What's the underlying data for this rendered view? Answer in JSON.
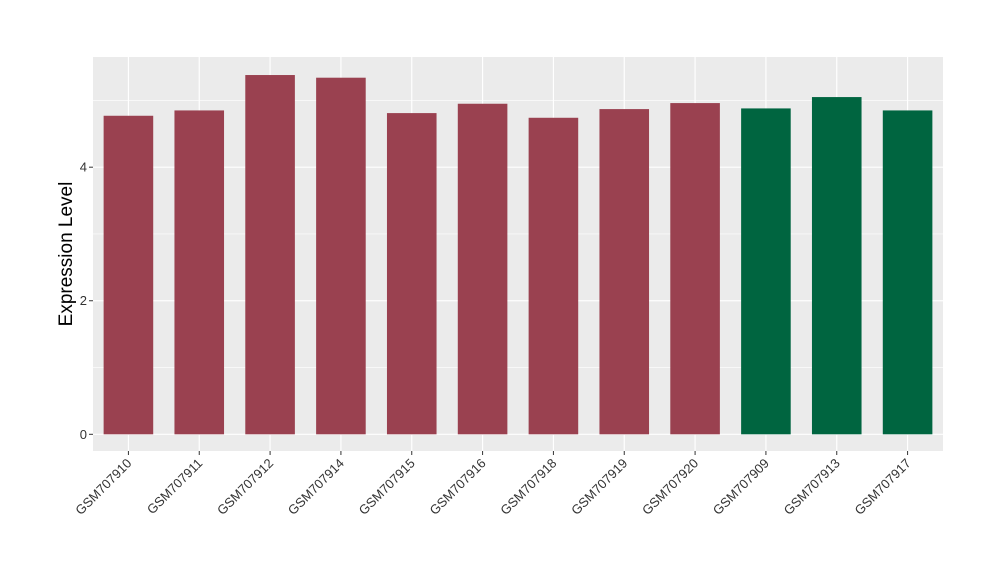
{
  "chart_data": {
    "type": "bar",
    "ylabel": "Expression Level",
    "ylim": [
      -0.25,
      5.65
    ],
    "yticks": [
      0,
      2,
      4
    ],
    "grid": true,
    "categories": [
      "GSM707910",
      "GSM707911",
      "GSM707912",
      "GSM707914",
      "GSM707915",
      "GSM707916",
      "GSM707918",
      "GSM707919",
      "GSM707920",
      "GSM707909",
      "GSM707913",
      "GSM707917"
    ],
    "values": [
      4.77,
      4.85,
      5.38,
      5.34,
      4.81,
      4.95,
      4.74,
      4.87,
      4.96,
      4.88,
      5.05,
      4.85
    ],
    "group_colors": [
      "#9a4150",
      "#9a4150",
      "#9a4150",
      "#9a4150",
      "#9a4150",
      "#9a4150",
      "#9a4150",
      "#9a4150",
      "#9a4150",
      "#006540",
      "#006540",
      "#006540"
    ],
    "panel_background": "#ebebeb",
    "grid_color": "#ffffff"
  }
}
